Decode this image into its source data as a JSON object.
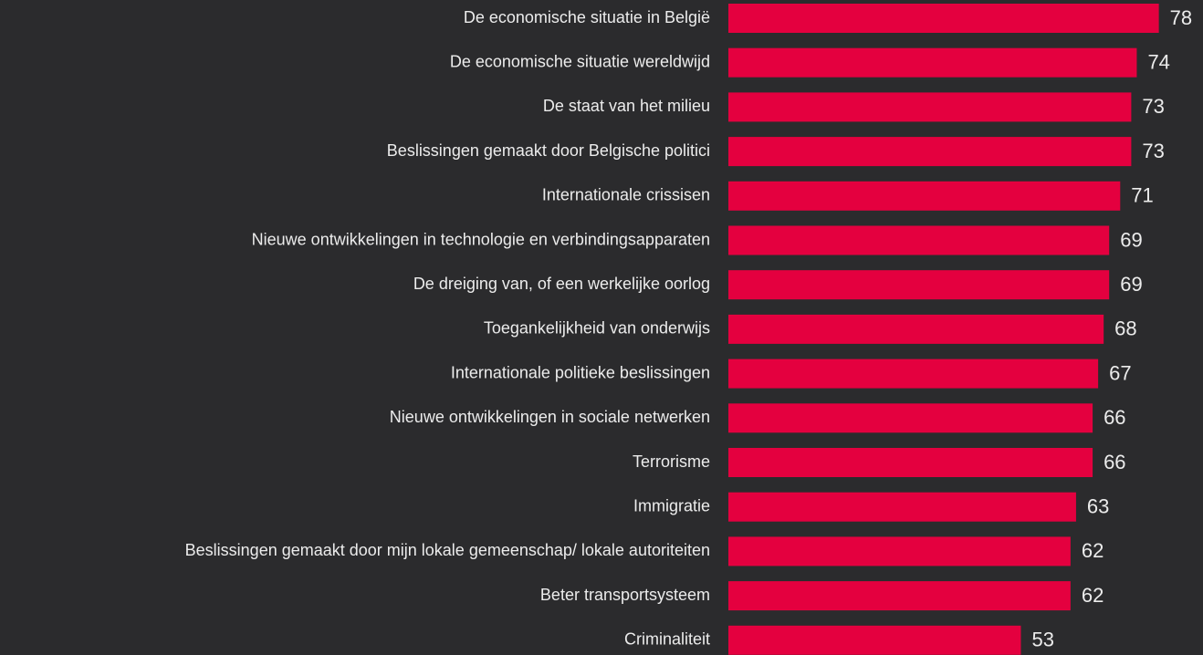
{
  "chart_data": {
    "type": "barh",
    "categories": [
      "De economische situatie in België",
      "De economische situatie wereldwijd",
      "De staat van het milieu",
      "Beslissingen gemaakt door Belgische politici ",
      "Internationale crissisen",
      "Nieuwe ontwikkelingen in technologie en verbindingsapparaten",
      "De dreiging van, of een werkelijke oorlog",
      "Toegankelijkheid van onderwijs",
      "Internationale politieke beslissingen",
      "Nieuwe ontwikkelingen in sociale netwerken",
      "Terrorisme",
      "Immigratie",
      "Beslissingen gemaakt door mijn lokale gemeenschap/ lokale autoriteiten",
      "Beter transportsysteem",
      "Criminaliteit"
    ],
    "values": [
      78,
      74,
      73,
      73,
      71,
      69,
      69,
      68,
      67,
      66,
      66,
      63,
      62,
      62,
      53
    ],
    "color": "#e4003f",
    "xlim": [
      0,
      86
    ]
  }
}
